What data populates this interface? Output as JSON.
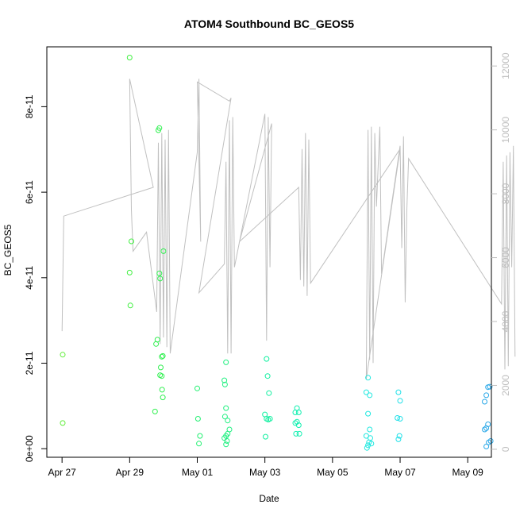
{
  "chart_data": {
    "type": "scatter",
    "title": "ATOM4 Southbound BC_GEOS5",
    "xlabel": "Date",
    "ylabel": "BC_GEOS5",
    "x_tick_labels": [
      "Apr 27",
      "Apr 29",
      "May 01",
      "May 03",
      "May 05",
      "May 07",
      "May 09"
    ],
    "y_left": {
      "range": [
        -2e-12,
        9.4e-11
      ],
      "ticks": [
        0,
        2e-11,
        4e-11,
        6e-11,
        8e-11
      ],
      "tick_labels": [
        "0e+00",
        "2e-11",
        "4e-11",
        "6e-11",
        "8e-11"
      ]
    },
    "y_right": {
      "range": [
        -250,
        12600
      ],
      "ticks": [
        0,
        2000,
        4000,
        6000,
        8000,
        10000,
        12000
      ],
      "tick_labels": [
        "0",
        "2000",
        "4000",
        "6000",
        "8000",
        "10000",
        "12000"
      ],
      "color": "#bebebe"
    },
    "x_range_days": [
      -0.45,
      12.7
    ],
    "line_color": "#c0c0c0",
    "altitude_trace": [
      [
        0.0,
        3700
      ],
      [
        0.05,
        7300
      ],
      [
        2.7,
        8200
      ],
      [
        2.0,
        11600
      ],
      [
        2.05,
        7500
      ],
      [
        2.1,
        6200
      ],
      [
        2.5,
        6800
      ],
      [
        2.8,
        4300
      ],
      [
        2.85,
        9600
      ],
      [
        2.9,
        3300
      ],
      [
        2.95,
        9900
      ],
      [
        3.0,
        3500
      ],
      [
        3.05,
        9700
      ],
      [
        3.1,
        3200
      ],
      [
        3.15,
        10000
      ],
      [
        3.2,
        3000
      ],
      [
        4.0,
        9300
      ],
      [
        4.05,
        11600
      ],
      [
        4.1,
        6500
      ],
      [
        4.0,
        11500
      ],
      [
        4.95,
        10900
      ],
      [
        5.0,
        11000
      ],
      [
        4.05,
        4900
      ],
      [
        4.8,
        5800
      ],
      [
        4.85,
        9000
      ],
      [
        4.9,
        3000
      ],
      [
        4.95,
        10300
      ],
      [
        5.0,
        3000
      ],
      [
        5.05,
        10400
      ],
      [
        5.1,
        5700
      ],
      [
        6.0,
        10500
      ],
      [
        6.05,
        3400
      ],
      [
        6.1,
        10400
      ],
      [
        6.15,
        5700
      ],
      [
        6.2,
        10200
      ],
      [
        5.25,
        6500
      ],
      [
        7.0,
        8200
      ],
      [
        7.05,
        5300
      ],
      [
        7.1,
        9400
      ],
      [
        7.15,
        5100
      ],
      [
        7.2,
        9900
      ],
      [
        7.25,
        4800
      ],
      [
        7.3,
        9700
      ],
      [
        7.35,
        5200
      ],
      [
        10.0,
        9400
      ],
      [
        9.0,
        2200
      ],
      [
        9.05,
        10000
      ],
      [
        9.1,
        2800
      ],
      [
        9.15,
        10100
      ],
      [
        9.2,
        2700
      ],
      [
        9.25,
        9900
      ],
      [
        9.3,
        7600
      ],
      [
        9.4,
        10100
      ],
      [
        9.45,
        5500
      ],
      [
        10.0,
        9500
      ],
      [
        10.05,
        6300
      ],
      [
        10.1,
        9800
      ],
      [
        10.15,
        4600
      ],
      [
        10.2,
        7500
      ],
      [
        10.25,
        9100
      ],
      [
        13.0,
        4550
      ],
      [
        13.05,
        9000
      ],
      [
        13.1,
        2500
      ],
      [
        13.15,
        9200
      ],
      [
        13.2,
        2600
      ],
      [
        13.25,
        9300
      ],
      [
        13.3,
        5700
      ],
      [
        13.35,
        9500
      ],
      [
        13.4,
        2900
      ]
    ],
    "scatter": [
      {
        "day": 0.02,
        "value": 2.2e-11,
        "color": "#60ee3a"
      },
      {
        "day": 0.02,
        "value": 6e-12,
        "color": "#60ee3a"
      },
      {
        "day": 2.0,
        "value": 9.15e-11,
        "color": "#40f040"
      },
      {
        "day": 2.05,
        "value": 4.85e-11,
        "color": "#40f040"
      },
      {
        "day": 2.0,
        "value": 4.12e-11,
        "color": "#40f040"
      },
      {
        "day": 2.02,
        "value": 3.35e-11,
        "color": "#40f040"
      },
      {
        "day": 2.78,
        "value": 2.45e-11,
        "color": "#30f050"
      },
      {
        "day": 2.82,
        "value": 2.55e-11,
        "color": "#30f050"
      },
      {
        "day": 2.85,
        "value": 7.45e-11,
        "color": "#30f050"
      },
      {
        "day": 2.88,
        "value": 7.5e-11,
        "color": "#30f050"
      },
      {
        "day": 2.88,
        "value": 4.1e-11,
        "color": "#30f050"
      },
      {
        "day": 2.9,
        "value": 3.98e-11,
        "color": "#30f050"
      },
      {
        "day": 2.95,
        "value": 2.15e-11,
        "color": "#30f050"
      },
      {
        "day": 2.92,
        "value": 1.9e-11,
        "color": "#30f050"
      },
      {
        "day": 2.9,
        "value": 1.72e-11,
        "color": "#30f050"
      },
      {
        "day": 2.95,
        "value": 1.7e-11,
        "color": "#30f050"
      },
      {
        "day": 2.98,
        "value": 2.17e-11,
        "color": "#30f050"
      },
      {
        "day": 2.96,
        "value": 1.38e-11,
        "color": "#30f050"
      },
      {
        "day": 2.98,
        "value": 1.2e-11,
        "color": "#30f050"
      },
      {
        "day": 2.75,
        "value": 8.7e-12,
        "color": "#30f050"
      },
      {
        "day": 3.0,
        "value": 4.62e-11,
        "color": "#30f050"
      },
      {
        "day": 4.0,
        "value": 1.41e-11,
        "color": "#20f070"
      },
      {
        "day": 4.02,
        "value": 7e-12,
        "color": "#20f070"
      },
      {
        "day": 4.08,
        "value": 3e-12,
        "color": "#20f070"
      },
      {
        "day": 4.05,
        "value": 1.2e-12,
        "color": "#20f070"
      },
      {
        "day": 4.8,
        "value": 1.6e-11,
        "color": "#20f080"
      },
      {
        "day": 4.85,
        "value": 2.02e-11,
        "color": "#20f080"
      },
      {
        "day": 4.82,
        "value": 1.5e-11,
        "color": "#20f080"
      },
      {
        "day": 4.85,
        "value": 9.5e-12,
        "color": "#20f080"
      },
      {
        "day": 4.82,
        "value": 7.5e-12,
        "color": "#20f080"
      },
      {
        "day": 4.9,
        "value": 6.6e-12,
        "color": "#20f080"
      },
      {
        "day": 4.95,
        "value": 4.5e-12,
        "color": "#20f080"
      },
      {
        "day": 4.9,
        "value": 3.5e-12,
        "color": "#20f080"
      },
      {
        "day": 4.85,
        "value": 3e-12,
        "color": "#20f080"
      },
      {
        "day": 4.88,
        "value": 1.8e-12,
        "color": "#20f080"
      },
      {
        "day": 4.85,
        "value": 1e-12,
        "color": "#20f080"
      },
      {
        "day": 4.8,
        "value": 2.5e-12,
        "color": "#20f080"
      },
      {
        "day": 6.05,
        "value": 2.1e-11,
        "color": "#10f0a0"
      },
      {
        "day": 6.08,
        "value": 1.7e-11,
        "color": "#10f0a0"
      },
      {
        "day": 6.12,
        "value": 1.3e-11,
        "color": "#10f0a0"
      },
      {
        "day": 6.0,
        "value": 8e-12,
        "color": "#10f0a0"
      },
      {
        "day": 6.05,
        "value": 7e-12,
        "color": "#10f0a0"
      },
      {
        "day": 6.15,
        "value": 7e-12,
        "color": "#10f0a0"
      },
      {
        "day": 6.1,
        "value": 6.8e-12,
        "color": "#10f0a0"
      },
      {
        "day": 6.02,
        "value": 2.8e-12,
        "color": "#10f0a0"
      },
      {
        "day": 6.95,
        "value": 9.5e-12,
        "color": "#10f0b0"
      },
      {
        "day": 6.9,
        "value": 8.5e-12,
        "color": "#10f0b0"
      },
      {
        "day": 7.0,
        "value": 8.5e-12,
        "color": "#10f0b0"
      },
      {
        "day": 6.95,
        "value": 6.3e-12,
        "color": "#10f0b0"
      },
      {
        "day": 6.9,
        "value": 6e-12,
        "color": "#10f0b0"
      },
      {
        "day": 7.0,
        "value": 5.5e-12,
        "color": "#10f0b0"
      },
      {
        "day": 6.92,
        "value": 3.5e-12,
        "color": "#10f0b0"
      },
      {
        "day": 7.02,
        "value": 3.5e-12,
        "color": "#10f0b0"
      },
      {
        "day": 9.05,
        "value": 1.66e-11,
        "color": "#20e8e0"
      },
      {
        "day": 9.0,
        "value": 1.32e-11,
        "color": "#20e8e0"
      },
      {
        "day": 9.1,
        "value": 1.25e-11,
        "color": "#20e8e0"
      },
      {
        "day": 9.05,
        "value": 8.2e-12,
        "color": "#20e8e0"
      },
      {
        "day": 9.1,
        "value": 4.5e-12,
        "color": "#20e8e0"
      },
      {
        "day": 9.0,
        "value": 3e-12,
        "color": "#20e8e0"
      },
      {
        "day": 9.12,
        "value": 2.5e-12,
        "color": "#20e8e0"
      },
      {
        "day": 9.08,
        "value": 1.5e-12,
        "color": "#20e8e0"
      },
      {
        "day": 9.05,
        "value": 8e-13,
        "color": "#20e8e0"
      },
      {
        "day": 9.02,
        "value": 2e-13,
        "color": "#20e8e0"
      },
      {
        "day": 9.15,
        "value": 1.2e-12,
        "color": "#20e8e0"
      },
      {
        "day": 9.95,
        "value": 1.32e-11,
        "color": "#20e0e8"
      },
      {
        "day": 10.0,
        "value": 1.12e-11,
        "color": "#20e0e8"
      },
      {
        "day": 9.92,
        "value": 7.2e-12,
        "color": "#20e0e8"
      },
      {
        "day": 10.0,
        "value": 7e-12,
        "color": "#20e0e8"
      },
      {
        "day": 9.98,
        "value": 3e-12,
        "color": "#20e0e8"
      },
      {
        "day": 9.95,
        "value": 2.2e-12,
        "color": "#20e0e8"
      },
      {
        "day": 12.6,
        "value": 1.44e-11,
        "color": "#2aa8e8"
      },
      {
        "day": 12.65,
        "value": 1.45e-11,
        "color": "#2aa8e8"
      },
      {
        "day": 12.55,
        "value": 1.25e-11,
        "color": "#2aa8e8"
      },
      {
        "day": 12.5,
        "value": 1.1e-11,
        "color": "#2aa8e8"
      },
      {
        "day": 12.6,
        "value": 5.7e-12,
        "color": "#2aa8e8"
      },
      {
        "day": 12.55,
        "value": 4.8e-12,
        "color": "#2aa8e8"
      },
      {
        "day": 12.5,
        "value": 4.5e-12,
        "color": "#2aa8e8"
      },
      {
        "day": 12.68,
        "value": 1.8e-12,
        "color": "#2aa8e8"
      },
      {
        "day": 12.62,
        "value": 1.5e-12,
        "color": "#2aa8e8"
      },
      {
        "day": 12.55,
        "value": 5e-13,
        "color": "#2aa8e8"
      }
    ]
  }
}
